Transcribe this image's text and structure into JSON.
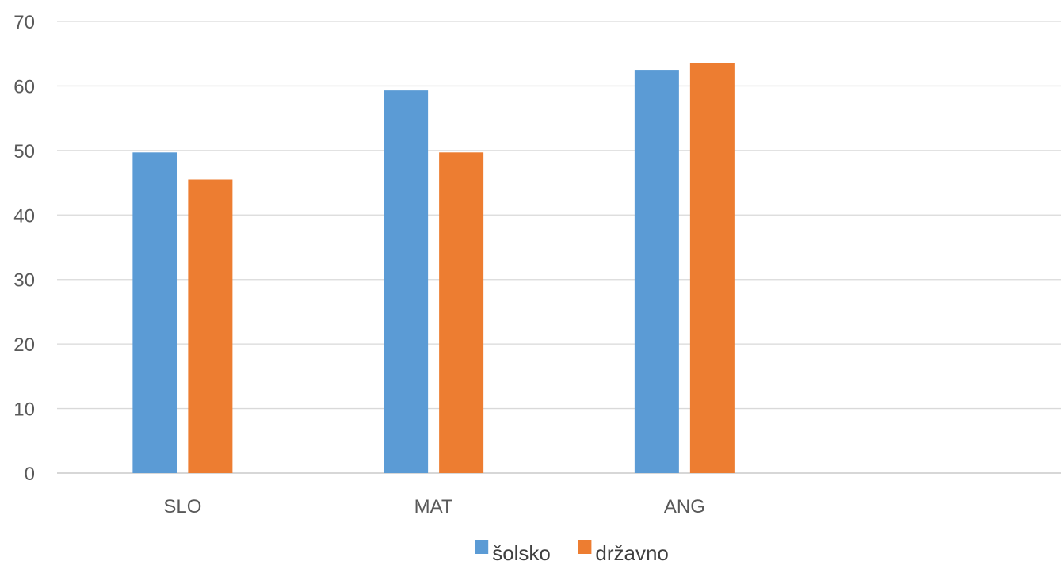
{
  "chart_data": {
    "type": "bar",
    "title": "",
    "xlabel": "",
    "ylabel": "",
    "categories": [
      "SLO",
      "MAT",
      "ANG",
      ""
    ],
    "series": [
      {
        "name": "šolsko",
        "values": [
          49.7,
          59.3,
          62.5,
          null
        ],
        "color": "#5b9bd5"
      },
      {
        "name": "državno",
        "values": [
          45.5,
          49.7,
          63.5,
          null
        ],
        "color": "#ed7d31"
      }
    ],
    "ylim": [
      0,
      70
    ],
    "yticks": [
      0,
      10,
      20,
      30,
      40,
      50,
      60,
      70
    ],
    "grid": true,
    "legend": "bottom-center"
  }
}
